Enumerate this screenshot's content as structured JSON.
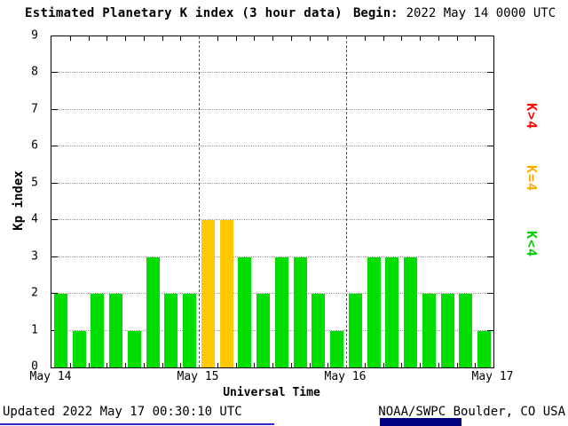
{
  "header": {
    "title": "Estimated Planetary K index (3 hour data)",
    "begin_label": "Begin:",
    "begin_value": "2022 May 14 0000 UTC"
  },
  "chart_data": {
    "type": "bar",
    "title": "Estimated Planetary K index (3 hour data)",
    "xlabel": "Universal Time",
    "ylabel": "Kp index",
    "ylim": [
      0,
      9
    ],
    "y_ticks": [
      0,
      1,
      2,
      3,
      4,
      5,
      6,
      7,
      8,
      9
    ],
    "grid": true,
    "x_tick_labels": [
      "May 14",
      "May 15",
      "May 16",
      "May 17"
    ],
    "bin_hours_per_bar": 3,
    "values": [
      2,
      1,
      2,
      2,
      1,
      3,
      2,
      2,
      4,
      4,
      3,
      2,
      3,
      3,
      2,
      1,
      2,
      3,
      3,
      3,
      2,
      2,
      2,
      1
    ],
    "colors": {
      "low": "#00dd00",
      "mid": "#ffc800",
      "high": "#ff0000"
    },
    "color_rule": "green K<4, yellow K=4, red K>4",
    "legend": [
      {
        "label": "K>4",
        "color": "#ff0000"
      },
      {
        "label": "K=4",
        "color": "#ffaa00"
      },
      {
        "label": "K<4",
        "color": "#00cc00"
      }
    ]
  },
  "footer": {
    "updated": "Updated 2022 May 17 00:30:10 UTC",
    "source": "NOAA/SWPC Boulder, CO USA"
  }
}
